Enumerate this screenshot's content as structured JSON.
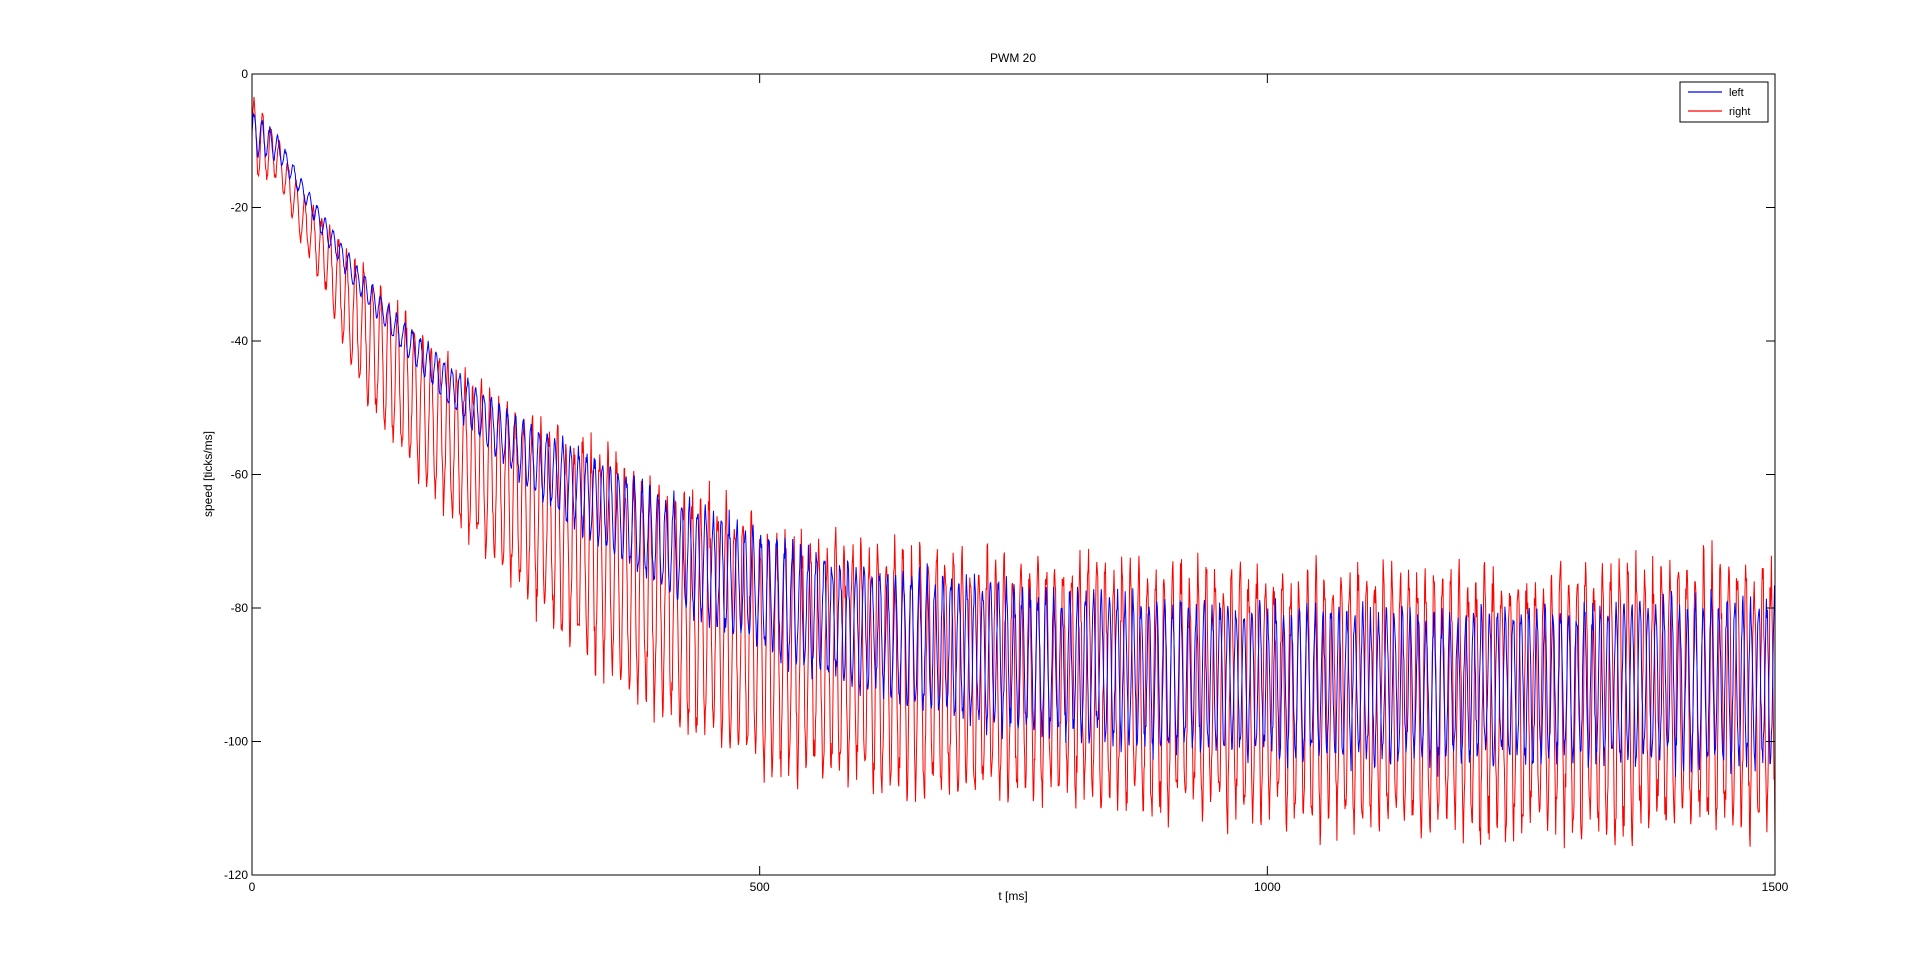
{
  "chart_data": {
    "type": "line",
    "title": "PWM 20",
    "xlabel": "t [ms]",
    "ylabel": "speed [ticks/ms]",
    "xlim": [
      0,
      1500
    ],
    "ylim": [
      -120,
      0
    ],
    "xticks": [
      0,
      500,
      1000,
      1500
    ],
    "yticks": [
      0,
      -20,
      -40,
      -60,
      -80,
      -100,
      -120
    ],
    "xtick_labels": [
      "0",
      "500",
      "1000",
      "1500"
    ],
    "ytick_labels": [
      "0",
      "-20",
      "-40",
      "-60",
      "-80",
      "-100",
      "-120"
    ],
    "grid": false,
    "legend_position": "top-right",
    "series": [
      {
        "name": "left",
        "color": "#0000ff",
        "x": [
          0,
          25,
          50,
          75,
          100,
          150,
          200,
          250,
          300,
          350,
          400,
          450,
          500,
          550,
          600,
          700,
          800,
          900,
          1000,
          1100,
          1200,
          1300,
          1400,
          1500
        ],
        "upper": [
          -5,
          -9,
          -16,
          -22,
          -28,
          -37,
          -44,
          -50,
          -54,
          -58,
          -62,
          -65,
          -68,
          -71,
          -73,
          -75,
          -77,
          -78,
          -79,
          -80,
          -80,
          -79,
          -78,
          -78
        ],
        "lower": [
          -12,
          -13,
          -19,
          -26,
          -32,
          -42,
          -51,
          -59,
          -66,
          -72,
          -78,
          -83,
          -87,
          -90,
          -93,
          -98,
          -100,
          -102,
          -103,
          -104,
          -104,
          -104,
          -104,
          -105
        ],
        "cycle_ms": 7.8
      },
      {
        "name": "right",
        "color": "#ff0000",
        "x": [
          0,
          25,
          50,
          75,
          100,
          150,
          200,
          250,
          300,
          350,
          400,
          450,
          500,
          550,
          600,
          700,
          800,
          900,
          1000,
          1100,
          1200,
          1300,
          1400,
          1500
        ],
        "upper": [
          -3,
          -9,
          -18,
          -22,
          -27,
          -35,
          -43,
          -48,
          -52,
          -55,
          -60,
          -62,
          -66,
          -68,
          -69,
          -71,
          -72,
          -73,
          -73,
          -73,
          -73,
          -73,
          -72,
          -72
        ],
        "lower": [
          -16,
          -16,
          -26,
          -34,
          -46,
          -58,
          -68,
          -76,
          -84,
          -91,
          -97,
          -101,
          -105,
          -107,
          -108,
          -109,
          -110,
          -112,
          -113,
          -114,
          -115,
          -115,
          -114,
          -114
        ],
        "cycle_ms": 8.3
      }
    ]
  }
}
